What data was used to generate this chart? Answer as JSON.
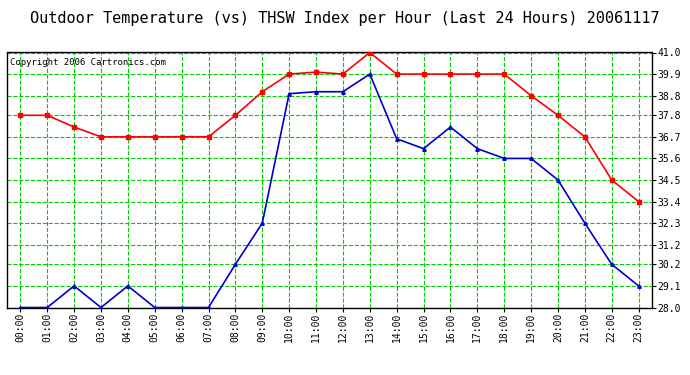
{
  "title": "Outdoor Temperature (vs) THSW Index per Hour (Last 24 Hours) 20061117",
  "copyright": "Copyright 2006 Cartronics.com",
  "hours": [
    "00:00",
    "01:00",
    "02:00",
    "03:00",
    "04:00",
    "05:00",
    "06:00",
    "07:00",
    "08:00",
    "09:00",
    "10:00",
    "11:00",
    "12:00",
    "13:00",
    "14:00",
    "15:00",
    "16:00",
    "17:00",
    "18:00",
    "19:00",
    "20:00",
    "21:00",
    "22:00",
    "23:00"
  ],
  "red_data": [
    37.8,
    37.8,
    37.2,
    36.7,
    36.7,
    36.7,
    36.7,
    36.7,
    37.8,
    39.0,
    39.9,
    40.0,
    39.9,
    41.0,
    39.9,
    39.9,
    39.9,
    39.9,
    39.9,
    38.8,
    37.8,
    36.7,
    34.5,
    33.4
  ],
  "blue_data": [
    28.0,
    28.0,
    29.1,
    28.0,
    29.1,
    28.0,
    28.0,
    28.0,
    30.2,
    32.3,
    38.9,
    39.0,
    39.0,
    39.9,
    36.6,
    36.1,
    37.2,
    36.1,
    35.6,
    35.6,
    34.5,
    32.3,
    30.2,
    29.1
  ],
  "ymin": 28.0,
  "ymax": 41.0,
  "yticks": [
    28.0,
    29.1,
    30.2,
    31.2,
    32.3,
    33.4,
    34.5,
    35.6,
    36.7,
    37.8,
    38.8,
    39.9,
    41.0
  ],
  "red_color": "#ff0000",
  "blue_color": "#0000cc",
  "bg_color": "#ffffff",
  "plot_bg_color": "#ffffff",
  "grid_color": "#00cc00",
  "vgrid_color": "#008800",
  "title_fontsize": 11,
  "copyright_fontsize": 6.5,
  "tick_fontsize": 7
}
